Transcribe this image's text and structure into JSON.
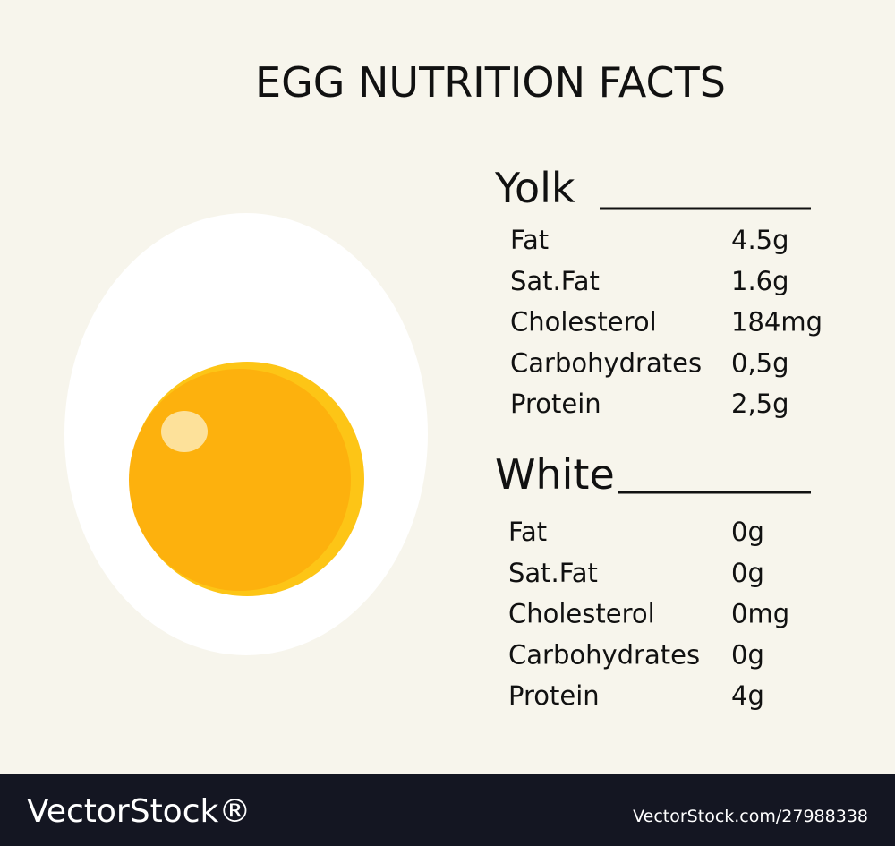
{
  "header": {
    "title": "EGG NUTRITION FACTS"
  },
  "sections": [
    {
      "heading": "Yolk",
      "rows": [
        [
          "Fat",
          "4.5g"
        ],
        [
          "Sat.Fat",
          "1.6g"
        ],
        [
          "Cholesterol",
          "184mg"
        ],
        [
          "Carbohydrates",
          "0,5g"
        ],
        [
          "Protein",
          "2,5g"
        ]
      ]
    },
    {
      "heading": "White",
      "rows": [
        [
          "Fat",
          "0g"
        ],
        [
          "Sat.Fat",
          "0g"
        ],
        [
          "Cholesterol",
          "0mg"
        ],
        [
          "Carbohydrates",
          "0g"
        ],
        [
          "Protein",
          "4g"
        ]
      ]
    }
  ],
  "footer": {
    "brand": "VectorStock®",
    "id": "VectorStock.com/27988338"
  }
}
